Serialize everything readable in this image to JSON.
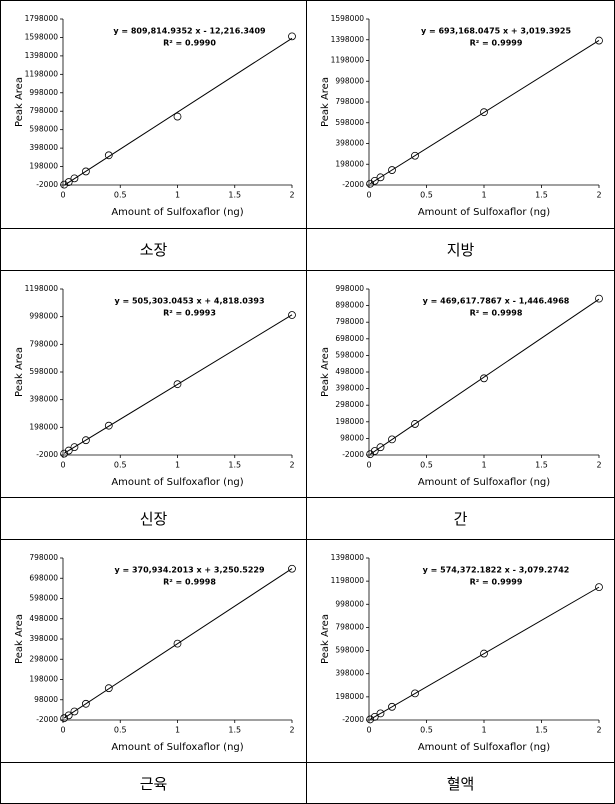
{
  "chart_data": [
    {
      "type": "scatter",
      "x": [
        0.01,
        0.05,
        0.1,
        0.2,
        0.4,
        1,
        2
      ],
      "values": [
        2000,
        30000,
        70000,
        145000,
        320000,
        740000,
        1610000
      ],
      "xlim": [
        0,
        2
      ],
      "ylim": [
        -2000,
        1798000
      ],
      "xticks": [
        0,
        0.5,
        1,
        1.5,
        2
      ],
      "yticks": [
        -2000,
        198000,
        398000,
        598000,
        798000,
        998000,
        1198000,
        1398000,
        1598000,
        1798000
      ],
      "xlabel": "Amount of Sulfoxaflor (ng)",
      "ylabel": "Peak Area",
      "trendline": "linear",
      "color": "#000000",
      "annotations": [
        "y = 809,814.9352  x - 12,216.3409",
        "R² = 0.9990"
      ],
      "caption": "소장"
    },
    {
      "type": "scatter",
      "x": [
        0.01,
        0.05,
        0.1,
        0.2,
        0.4,
        1,
        2
      ],
      "values": [
        10000,
        38000,
        72000,
        142000,
        280000,
        700000,
        1390000
      ],
      "xlim": [
        0,
        2
      ],
      "ylim": [
        -2000,
        1598000
      ],
      "xticks": [
        0,
        0.5,
        1,
        1.5,
        2
      ],
      "yticks": [
        -2000,
        198000,
        398000,
        598000,
        798000,
        998000,
        1198000,
        1398000,
        1598000
      ],
      "xlabel": "Amount of Sulfoxaflor (ng)",
      "ylabel": "Peak Area",
      "trendline": "linear",
      "color": "#000000",
      "annotations": [
        "y = 693,168.0475  x + 3,019.3925",
        "R² = 0.9999"
      ],
      "caption": "지방"
    },
    {
      "type": "scatter",
      "x": [
        0.01,
        0.05,
        0.1,
        0.2,
        0.4,
        1,
        2
      ],
      "values": [
        8000,
        30000,
        55000,
        105000,
        210000,
        510000,
        1010000
      ],
      "xlim": [
        0,
        2
      ],
      "ylim": [
        -2000,
        1198000
      ],
      "xticks": [
        0,
        0.5,
        1,
        1.5,
        2
      ],
      "yticks": [
        -2000,
        198000,
        398000,
        598000,
        798000,
        998000,
        1198000
      ],
      "xlabel": "Amount of Sulfoxaflor (ng)",
      "ylabel": "Peak Area",
      "trendline": "linear",
      "color": "#000000",
      "annotations": [
        "y = 505,303.0453  x + 4,818.0393",
        "R² = 0.9993"
      ],
      "caption": "신장"
    },
    {
      "type": "scatter",
      "x": [
        0.01,
        0.05,
        0.1,
        0.2,
        0.4,
        1,
        2
      ],
      "values": [
        3000,
        22000,
        45000,
        92000,
        185000,
        460000,
        940000
      ],
      "xlim": [
        0,
        2
      ],
      "ylim": [
        -2000,
        998000
      ],
      "xticks": [
        0,
        0.5,
        1,
        1.5,
        2
      ],
      "yticks": [
        -2000,
        98000,
        198000,
        298000,
        398000,
        498000,
        598000,
        698000,
        798000,
        898000,
        998000
      ],
      "xlabel": "Amount of Sulfoxaflor (ng)",
      "ylabel": "Peak Area",
      "trendline": "linear",
      "color": "#000000",
      "annotations": [
        "y = 469,617.7867  x - 1,446.4968",
        "R² = 0.9998"
      ],
      "caption": "간"
    },
    {
      "type": "scatter",
      "x": [
        0.01,
        0.05,
        0.1,
        0.2,
        0.4,
        1,
        2
      ],
      "values": [
        7000,
        21000,
        40000,
        78000,
        155000,
        375000,
        745000
      ],
      "xlim": [
        0,
        2
      ],
      "ylim": [
        -2000,
        798000
      ],
      "xticks": [
        0,
        0.5,
        1,
        1.5,
        2
      ],
      "yticks": [
        -2000,
        98000,
        198000,
        298000,
        398000,
        498000,
        598000,
        698000,
        798000
      ],
      "xlabel": "Amount of Sulfoxaflor (ng)",
      "ylabel": "Peak Area",
      "trendline": "linear",
      "color": "#000000",
      "annotations": [
        "y = 370,934.2013  x + 3,250.5229",
        "R² = 0.9998"
      ],
      "caption": "근육"
    },
    {
      "type": "scatter",
      "x": [
        0.01,
        0.05,
        0.1,
        0.2,
        0.4,
        1,
        2
      ],
      "values": [
        3000,
        25000,
        55000,
        112000,
        228000,
        572000,
        1146000
      ],
      "xlim": [
        0,
        2
      ],
      "ylim": [
        -2000,
        1398000
      ],
      "xticks": [
        0,
        0.5,
        1,
        1.5,
        2
      ],
      "yticks": [
        -2000,
        198000,
        398000,
        598000,
        798000,
        998000,
        1198000,
        1398000
      ],
      "xlabel": "Amount of Sulfoxaflor (ng)",
      "ylabel": "Peak Area",
      "trendline": "linear",
      "color": "#000000",
      "annotations": [
        "y = 574,372.1822  x - 3,079.2742",
        "R² = 0.9999"
      ],
      "caption": "혈액"
    }
  ]
}
